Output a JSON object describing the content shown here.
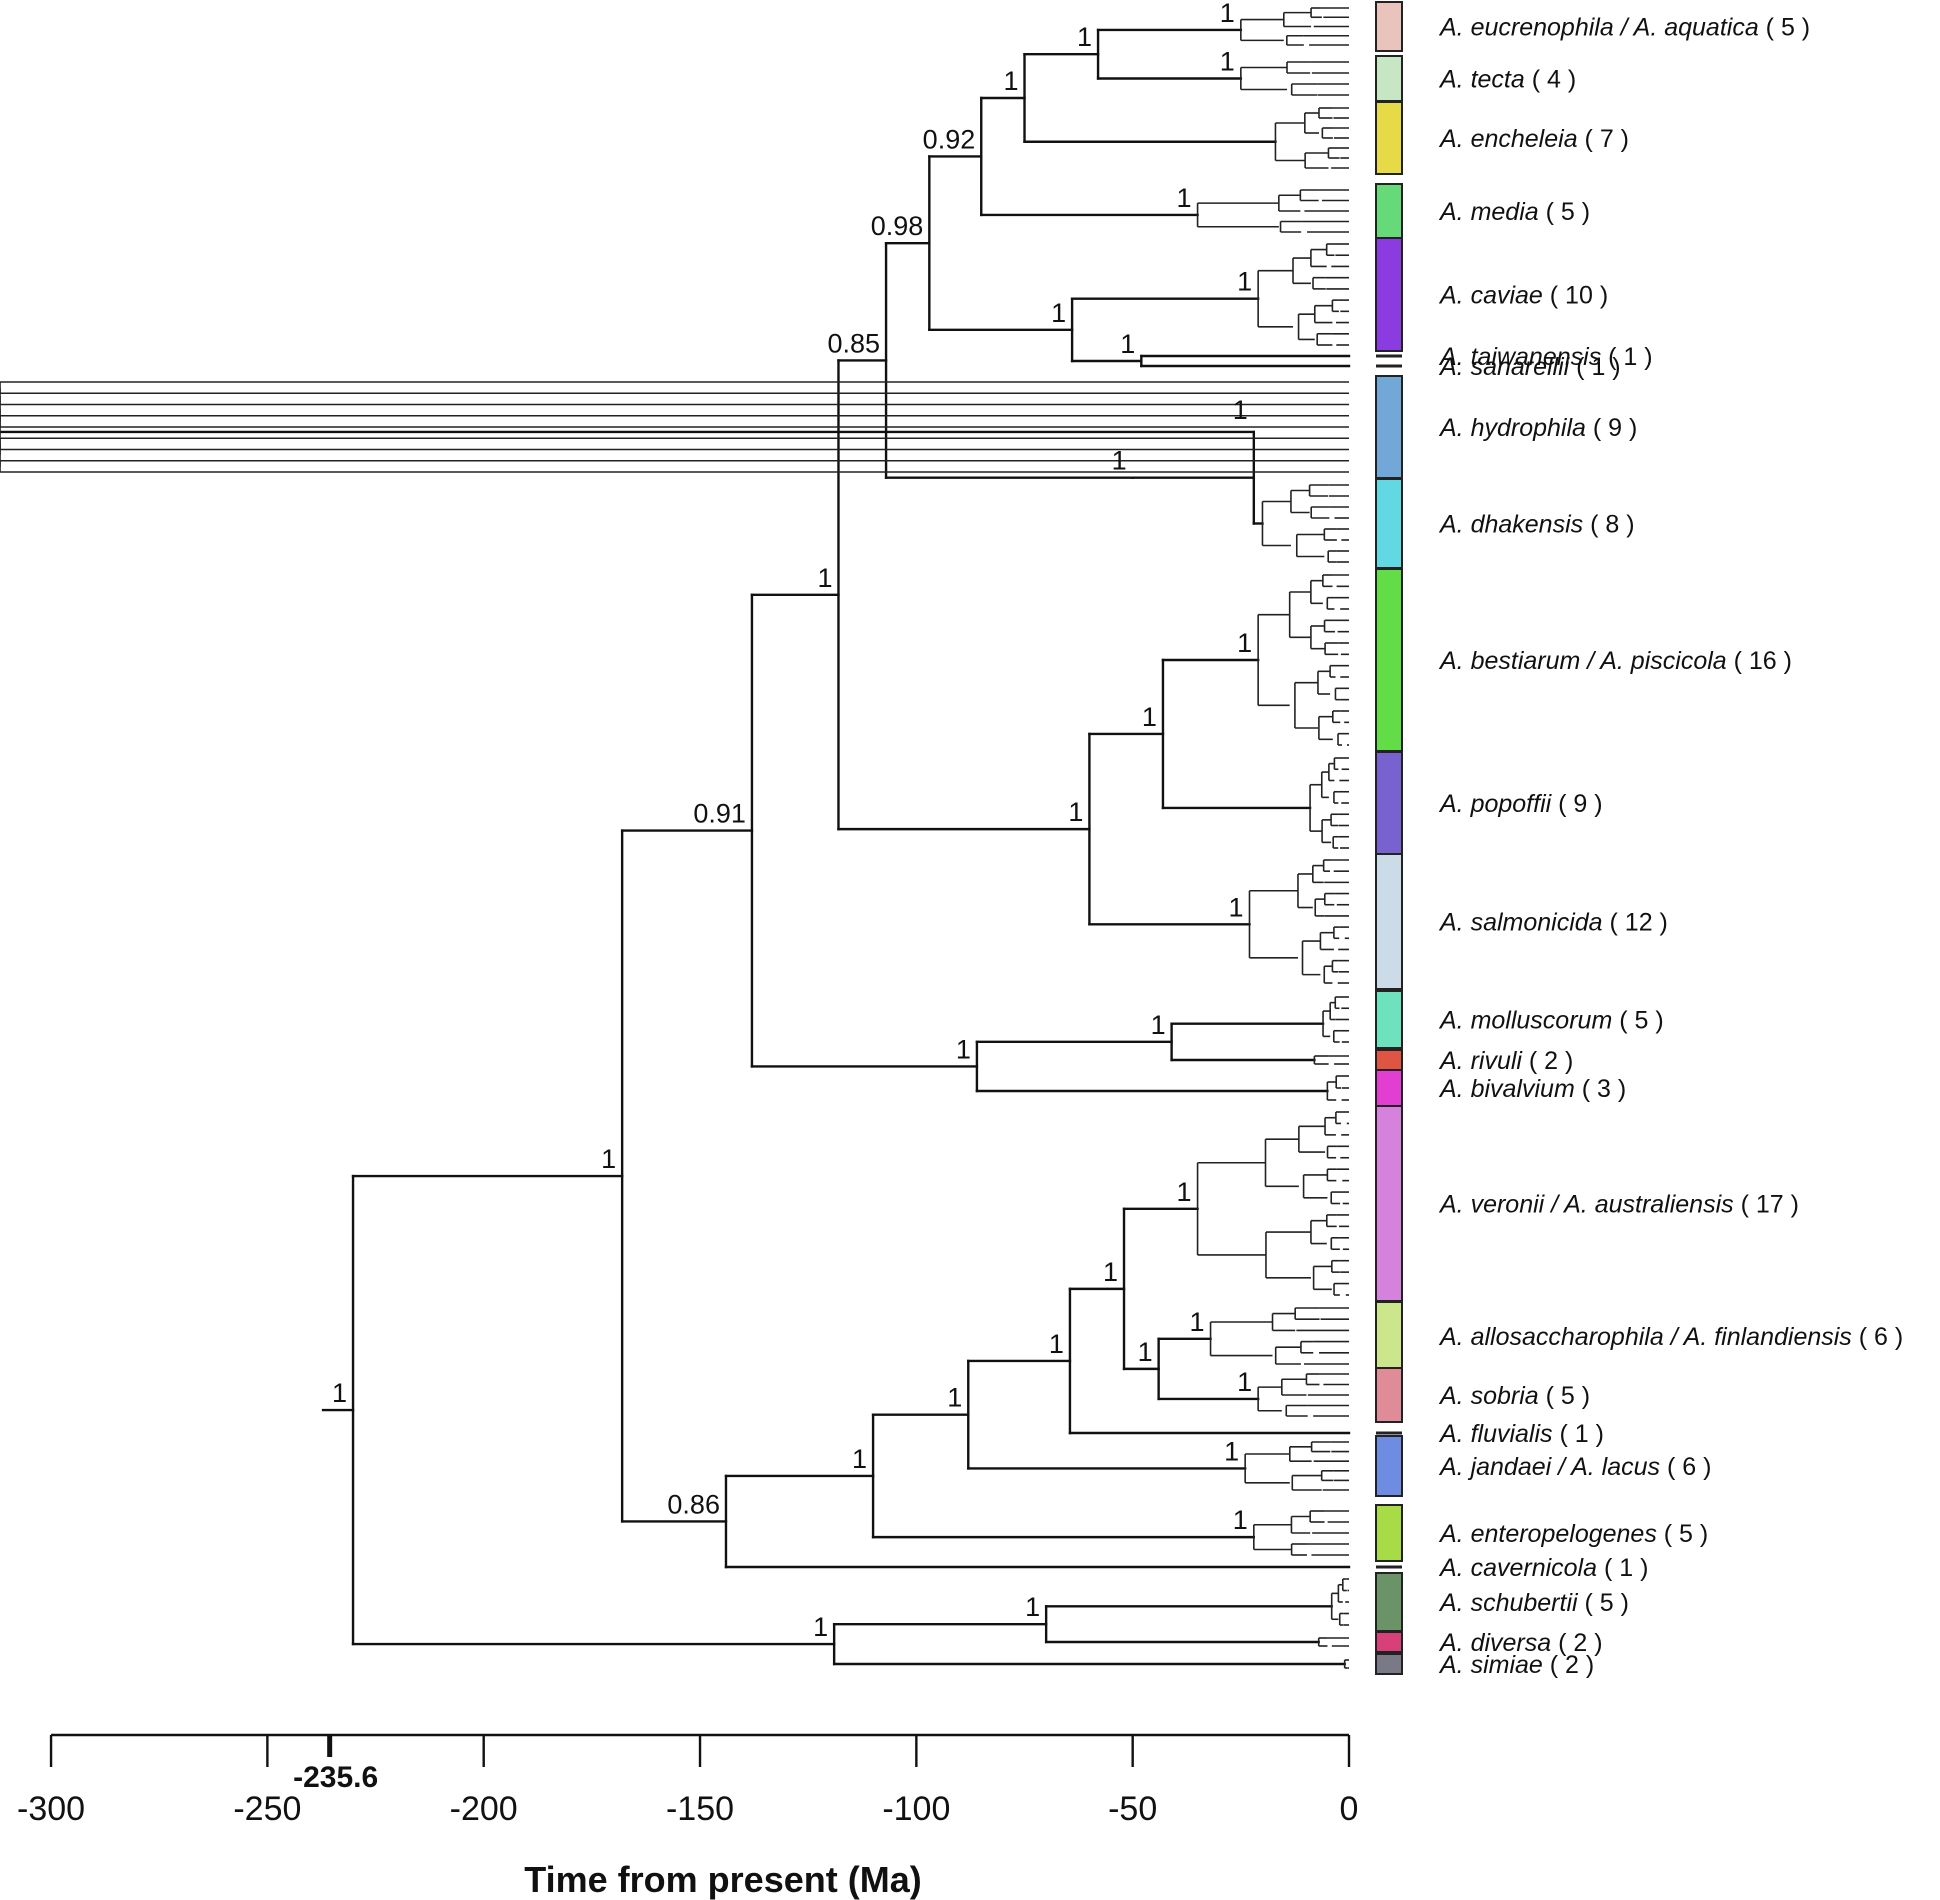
{
  "tree": {
    "root_age_label": "-235.6",
    "root_age": -235.6,
    "axis": {
      "ticks": [
        -300,
        -250,
        -200,
        -150,
        -100,
        -50,
        0
      ],
      "tick_labels": [
        "-300",
        "-250",
        "-200",
        "-150",
        "-100",
        "-50",
        "0"
      ],
      "title": "Time from present (Ma)"
    },
    "support_values": [
      {
        "node": "n_root",
        "value": "1"
      },
      {
        "node": "n_big",
        "value": "1"
      },
      {
        "node": "n_upper",
        "value": "0.91"
      },
      {
        "node": "n_core",
        "value": "1"
      },
      {
        "node": "n_hc",
        "value": "0.85"
      },
      {
        "node": "n_a",
        "value": "0.98"
      },
      {
        "node": "n_b",
        "value": "0.92"
      },
      {
        "node": "n_c",
        "value": "1"
      },
      {
        "node": "n_d",
        "value": "1"
      },
      {
        "node": "c_euc",
        "value": "1"
      },
      {
        "node": "c_tec",
        "value": "1"
      },
      {
        "node": "c_med",
        "value": "1"
      },
      {
        "node": "n_ct",
        "value": "1"
      },
      {
        "node": "c_cav",
        "value": "1"
      },
      {
        "node": "n_ts",
        "value": "1"
      },
      {
        "node": "n_hyd",
        "value": "1"
      },
      {
        "node": "c_hydro",
        "value": "1"
      },
      {
        "node": "n_bps",
        "value": "1"
      },
      {
        "node": "n_bp",
        "value": "1"
      },
      {
        "node": "c_bes",
        "value": "1"
      },
      {
        "node": "c_sal",
        "value": "1"
      },
      {
        "node": "n_mrb",
        "value": "1"
      },
      {
        "node": "n_mr",
        "value": "1"
      },
      {
        "node": "n_lower",
        "value": "0.86"
      },
      {
        "node": "n_l2",
        "value": "1"
      },
      {
        "node": "n_l3",
        "value": "1"
      },
      {
        "node": "n_l4",
        "value": "1"
      },
      {
        "node": "n_l5",
        "value": "1"
      },
      {
        "node": "c_ver",
        "value": "1"
      },
      {
        "node": "n_as",
        "value": "1"
      },
      {
        "node": "c_all",
        "value": "1"
      },
      {
        "node": "c_sob",
        "value": "1"
      },
      {
        "node": "c_jan",
        "value": "1"
      },
      {
        "node": "c_ent",
        "value": "1"
      },
      {
        "node": "n_sds",
        "value": "1"
      },
      {
        "node": "n_sd",
        "value": "1"
      }
    ],
    "clades": [
      {
        "id": "euc",
        "name": "A. eucrenophila / A. aquatica",
        "count": "5",
        "color": "#e8c4bc"
      },
      {
        "id": "tec",
        "name": "A. tecta",
        "count": "4",
        "color": "#c6e6c4"
      },
      {
        "id": "enc",
        "name": "A. encheleia",
        "count": "7",
        "color": "#e6da46"
      },
      {
        "id": "med",
        "name": "A. media",
        "count": "5",
        "color": "#66d978"
      },
      {
        "id": "cav",
        "name": "A. caviae",
        "count": "10",
        "color": "#8b3ce0"
      },
      {
        "id": "tai",
        "name": "A. taiwanensis",
        "count": "1",
        "color": "#222222"
      },
      {
        "id": "san",
        "name": "A. sanarellii",
        "count": "1",
        "color": "#222222"
      },
      {
        "id": "hyd",
        "name": "A. hydrophila",
        "count": "9",
        "color": "#72a8d8"
      },
      {
        "id": "dha",
        "name": "A. dhakensis",
        "count": "8",
        "color": "#62d8e2"
      },
      {
        "id": "bes",
        "name": "A. bestiarum / A. piscicola",
        "count": "16",
        "color": "#62dd48"
      },
      {
        "id": "pop",
        "name": "A. popoffii",
        "count": "9",
        "color": "#7862d0"
      },
      {
        "id": "sal",
        "name": "A. salmonicida",
        "count": "12",
        "color": "#ccdbe8"
      },
      {
        "id": "mol",
        "name": "A. molluscorum",
        "count": "5",
        "color": "#6ee2bc"
      },
      {
        "id": "riv",
        "name": "A. rivuli",
        "count": "2",
        "color": "#e05444"
      },
      {
        "id": "biv",
        "name": "A. bivalvium",
        "count": "3",
        "color": "#e23ed2"
      },
      {
        "id": "ver",
        "name": "A. veronii / A. australiensis",
        "count": "17",
        "color": "#d482dc"
      },
      {
        "id": "all",
        "name": "A. allosaccharophila / A. finlandiensis",
        "count": "6",
        "color": "#cce68c"
      },
      {
        "id": "sob",
        "name": "A. sobria",
        "count": "5",
        "color": "#e08c98"
      },
      {
        "id": "flu",
        "name": "A. fluvialis",
        "count": "1",
        "color": "#222222"
      },
      {
        "id": "jan",
        "name": "A. jandaei / A. lacus",
        "count": "6",
        "color": "#6e8ce2"
      },
      {
        "id": "ent",
        "name": "A. enteropelogenes",
        "count": "5",
        "color": "#a8dc46"
      },
      {
        "id": "cvr",
        "name": "A. cavernicola",
        "count": "1",
        "color": "#222222"
      },
      {
        "id": "sch",
        "name": "A. schubertii",
        "count": "5",
        "color": "#6a9468"
      },
      {
        "id": "div",
        "name": "A. diversa",
        "count": "2",
        "color": "#d8407a"
      },
      {
        "id": "sim",
        "name": "A. simiae",
        "count": "2",
        "color": "#7a7a86"
      }
    ]
  }
}
